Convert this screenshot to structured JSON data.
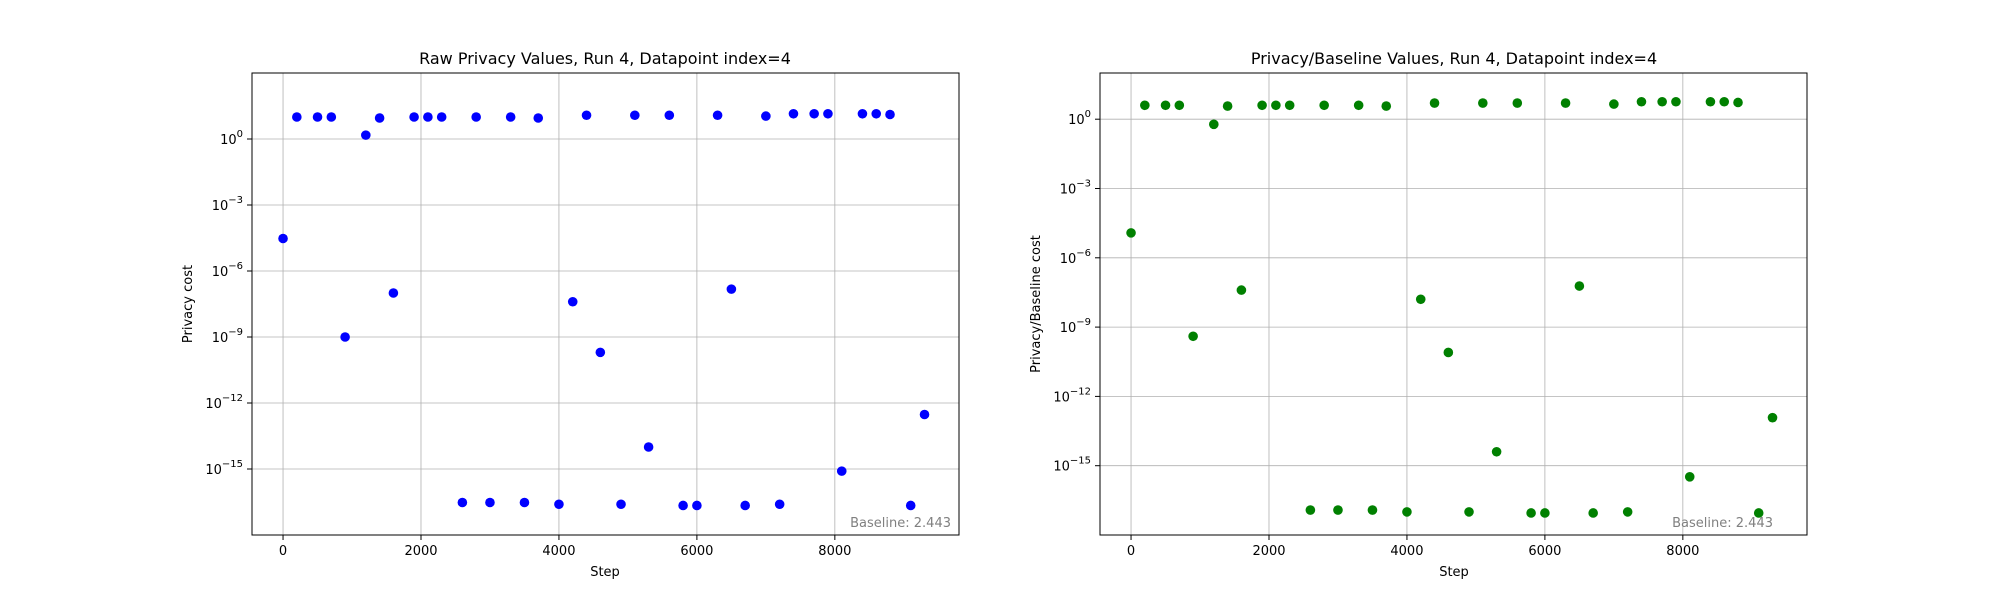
{
  "chart_data": [
    {
      "type": "scatter",
      "title": "Raw Privacy Values, Run 4, Datapoint index=4",
      "xlabel": "Step",
      "ylabel": "Privacy cost",
      "yscale": "log",
      "xlim": [
        -450,
        9800
      ],
      "ylim": [
        1e-18,
        1000.0
      ],
      "xticks": [
        {
          "value": 0,
          "label": "0"
        },
        {
          "value": 2000,
          "label": "2000"
        },
        {
          "value": 4000,
          "label": "4000"
        },
        {
          "value": 6000,
          "label": "6000"
        },
        {
          "value": 8000,
          "label": "8000"
        }
      ],
      "yticks": [
        {
          "value": 1,
          "label": "10",
          "exp": "0"
        },
        {
          "value": 0.001,
          "label": "10",
          "exp": "−3"
        },
        {
          "value": 1e-06,
          "label": "10",
          "exp": "−6"
        },
        {
          "value": 1e-09,
          "label": "10",
          "exp": "−9"
        },
        {
          "value": 1e-12,
          "label": "10",
          "exp": "−12"
        },
        {
          "value": 1e-15,
          "label": "10",
          "exp": "−15"
        }
      ],
      "grid": true,
      "annotation": "Baseline: 2.443",
      "color": "#0000ff",
      "x": [
        0,
        200,
        500,
        700,
        900,
        1200,
        1400,
        1600,
        1900,
        2100,
        2300,
        2600,
        2800,
        3000,
        3300,
        3500,
        3700,
        4000,
        4200,
        4400,
        4600,
        4900,
        5100,
        5300,
        5600,
        5800,
        6000,
        6300,
        6500,
        6700,
        7000,
        7200,
        7400,
        7700,
        7900,
        8100,
        8400,
        8600,
        8800,
        9100,
        9300
      ],
      "y": [
        3e-05,
        10,
        10,
        10,
        1e-09,
        1.5,
        9,
        1e-07,
        10,
        10,
        10,
        3e-17,
        10,
        3e-17,
        10,
        3e-17,
        9,
        2.5e-17,
        4e-08,
        12,
        2e-10,
        2.5e-17,
        12,
        1e-14,
        12,
        2.2e-17,
        2.2e-17,
        12,
        1.5e-07,
        2.2e-17,
        11,
        2.5e-17,
        14,
        14,
        14,
        8e-16,
        14,
        14,
        13,
        2.2e-17,
        3e-13
      ]
    },
    {
      "type": "scatter",
      "title": "Privacy/Baseline Values, Run 4, Datapoint index=4",
      "xlabel": "Step",
      "ylabel": "Privacy/Baseline cost",
      "yscale": "log",
      "xlim": [
        -450,
        9800
      ],
      "ylim": [
        1e-18,
        100.0
      ],
      "xticks": [
        {
          "value": 0,
          "label": "0"
        },
        {
          "value": 2000,
          "label": "2000"
        },
        {
          "value": 4000,
          "label": "4000"
        },
        {
          "value": 6000,
          "label": "6000"
        },
        {
          "value": 8000,
          "label": "8000"
        }
      ],
      "yticks": [
        {
          "value": 1,
          "label": "10",
          "exp": "0"
        },
        {
          "value": 0.001,
          "label": "10",
          "exp": "−3"
        },
        {
          "value": 1e-06,
          "label": "10",
          "exp": "−6"
        },
        {
          "value": 1e-09,
          "label": "10",
          "exp": "−9"
        },
        {
          "value": 1e-12,
          "label": "10",
          "exp": "−12"
        },
        {
          "value": 1e-15,
          "label": "10",
          "exp": "−15"
        }
      ],
      "grid": true,
      "annotation": "Baseline: 2.443",
      "color": "#008000",
      "x": [
        0,
        200,
        500,
        700,
        900,
        1200,
        1400,
        1600,
        1900,
        2100,
        2300,
        2600,
        2800,
        3000,
        3300,
        3500,
        3700,
        4000,
        4200,
        4400,
        4600,
        4900,
        5100,
        5300,
        5600,
        5800,
        6000,
        6300,
        6500,
        6700,
        7000,
        7200,
        7400,
        7700,
        7900,
        8100,
        8400,
        8600,
        8800,
        9100,
        9300
      ],
      "y": [
        1.2e-05,
        4,
        4,
        4,
        4e-10,
        0.6,
        3.7,
        4e-08,
        4,
        4,
        4,
        1.2e-17,
        4,
        1.2e-17,
        4,
        1.2e-17,
        3.7,
        1e-17,
        1.6e-08,
        5,
        8e-11,
        1e-17,
        5,
        4e-15,
        5,
        9e-18,
        9e-18,
        5,
        6e-08,
        9e-18,
        4.5,
        1e-17,
        5.7,
        5.7,
        5.7,
        3.3e-16,
        5.7,
        5.7,
        5.3,
        9e-18,
        1.2e-13
      ]
    }
  ]
}
